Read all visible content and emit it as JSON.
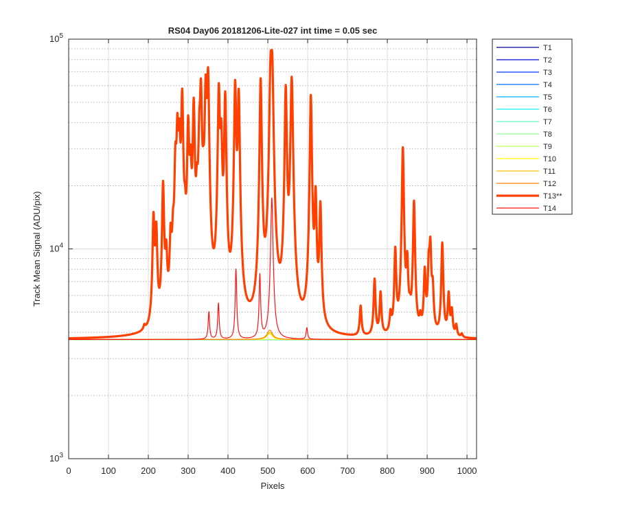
{
  "chart_data": {
    "type": "line",
    "title": "RS04 Day06 20181206-Lite-027 int time = 0.05 sec",
    "xlabel": "Pixels",
    "ylabel": "Track Mean Signal (ADU/pix)",
    "xlim": [
      0,
      1024
    ],
    "ylim": [
      1000,
      100000
    ],
    "yscale": "log",
    "x_ticks": [
      0,
      100,
      200,
      300,
      400,
      500,
      600,
      700,
      800,
      900,
      1000
    ],
    "x_tick_labels": [
      "0",
      "100",
      "200",
      "300",
      "400",
      "500",
      "600",
      "700",
      "800",
      "900",
      "1000"
    ],
    "y_ticks": [
      1000,
      10000,
      100000
    ],
    "y_tick_labels": [
      {
        "base": "10",
        "exp": "3"
      },
      {
        "base": "10",
        "exp": "4"
      },
      {
        "base": "10",
        "exp": "5"
      }
    ],
    "grid": true,
    "minor_grid": true,
    "legend_position": "outside-right",
    "baseline": 3700,
    "series": [
      {
        "name": "T1",
        "color": "#00008F",
        "width": 1.2,
        "baseline": 3690,
        "peaks": []
      },
      {
        "name": "T2",
        "color": "#0000D0",
        "width": 1.2,
        "baseline": 3690,
        "peaks": []
      },
      {
        "name": "T3",
        "color": "#0030FF",
        "width": 1.2,
        "baseline": 3692,
        "peaks": []
      },
      {
        "name": "T4",
        "color": "#0070FF",
        "width": 1.2,
        "baseline": 3692,
        "peaks": []
      },
      {
        "name": "T5",
        "color": "#00B0FF",
        "width": 1.2,
        "baseline": 3694,
        "peaks": []
      },
      {
        "name": "T6",
        "color": "#10F0F0",
        "width": 1.2,
        "baseline": 3694,
        "peaks": []
      },
      {
        "name": "T7",
        "color": "#60FFC0",
        "width": 1.2,
        "baseline": 3696,
        "peaks": []
      },
      {
        "name": "T8",
        "color": "#90FF90",
        "width": 1.2,
        "baseline": 3696,
        "peaks": []
      },
      {
        "name": "T9",
        "color": "#C0FF50",
        "width": 1.2,
        "baseline": 3698,
        "peaks": []
      },
      {
        "name": "T10",
        "color": "#FFFF00",
        "width": 1.2,
        "baseline": 3698,
        "peaks": [
          [
            505,
            3950,
            8
          ]
        ]
      },
      {
        "name": "T11",
        "color": "#FFC000",
        "width": 1.2,
        "baseline": 3700,
        "peaks": [
          [
            505,
            4000,
            8
          ]
        ]
      },
      {
        "name": "T12",
        "color": "#FF8000",
        "width": 1.2,
        "baseline": 3700,
        "peaks": [
          [
            505,
            4100,
            8
          ]
        ]
      },
      {
        "name": "T13**",
        "color": "#FF4000",
        "width": 3.2,
        "baseline": 3700,
        "peaks": [
          [
            190,
            3900,
            2.5
          ],
          [
            213,
            13500,
            2.5
          ],
          [
            220,
            11500,
            2.5
          ],
          [
            237,
            19500,
            2.5
          ],
          [
            245,
            8000,
            2.5
          ],
          [
            256,
            9500,
            2.5
          ],
          [
            262,
            8500,
            2.5
          ],
          [
            268,
            22000,
            2.5
          ],
          [
            273,
            32500,
            2.5
          ],
          [
            278,
            28000,
            2.5
          ],
          [
            285,
            51000,
            2.5
          ],
          [
            292,
            8800,
            2.5
          ],
          [
            300,
            36000,
            2.5
          ],
          [
            306,
            20000,
            2.5
          ],
          [
            314,
            46000,
            2.5
          ],
          [
            322,
            13000,
            2.5
          ],
          [
            328,
            26000,
            2.5
          ],
          [
            332,
            52000,
            2.5
          ],
          [
            338,
            11000,
            2.5
          ],
          [
            344,
            54000,
            2.5
          ],
          [
            350,
            63000,
            2.5
          ],
          [
            377,
            55000,
            2.5
          ],
          [
            383,
            30000,
            2.5
          ],
          [
            393,
            52000,
            2.5
          ],
          [
            418,
            59000,
            2.5
          ],
          [
            427,
            53000,
            2.5
          ],
          [
            482,
            63000,
            2.5
          ],
          [
            507,
            63000,
            3
          ],
          [
            511,
            64000,
            3
          ],
          [
            545,
            57000,
            2.5
          ],
          [
            560,
            64000,
            3
          ],
          [
            608,
            53000,
            2.5
          ],
          [
            620,
            17000,
            2.5
          ],
          [
            632,
            15500,
            2.5
          ],
          [
            733,
            5200,
            2.5
          ],
          [
            768,
            7000,
            2.5
          ],
          [
            783,
            6000,
            2.5
          ],
          [
            808,
            4600,
            2.5
          ],
          [
            820,
            9600,
            2.5
          ],
          [
            839,
            30000,
            2.5
          ],
          [
            850,
            8000,
            2.5
          ],
          [
            857,
            4300,
            2.5
          ],
          [
            867,
            16500,
            2.5
          ],
          [
            883,
            4300,
            2.5
          ],
          [
            894,
            7500,
            2.5
          ],
          [
            904,
            7600,
            2.5
          ],
          [
            908,
            9700,
            2.5
          ],
          [
            914,
            6000,
            2.5
          ],
          [
            938,
            10500,
            2.5
          ],
          [
            954,
            5900,
            2.5
          ],
          [
            962,
            4900,
            2.5
          ],
          [
            973,
            4200,
            2.5
          ],
          [
            987,
            3850,
            2.5
          ]
        ]
      },
      {
        "name": "T14",
        "color": "#FF1010",
        "width": 1.2,
        "baseline": 3700,
        "peaks": [
          [
            352,
            5000,
            2
          ],
          [
            376,
            5500,
            2
          ],
          [
            420,
            8000,
            2
          ],
          [
            480,
            7500,
            2
          ],
          [
            510,
            17500,
            3
          ],
          [
            598,
            4200,
            2
          ]
        ]
      }
    ]
  }
}
